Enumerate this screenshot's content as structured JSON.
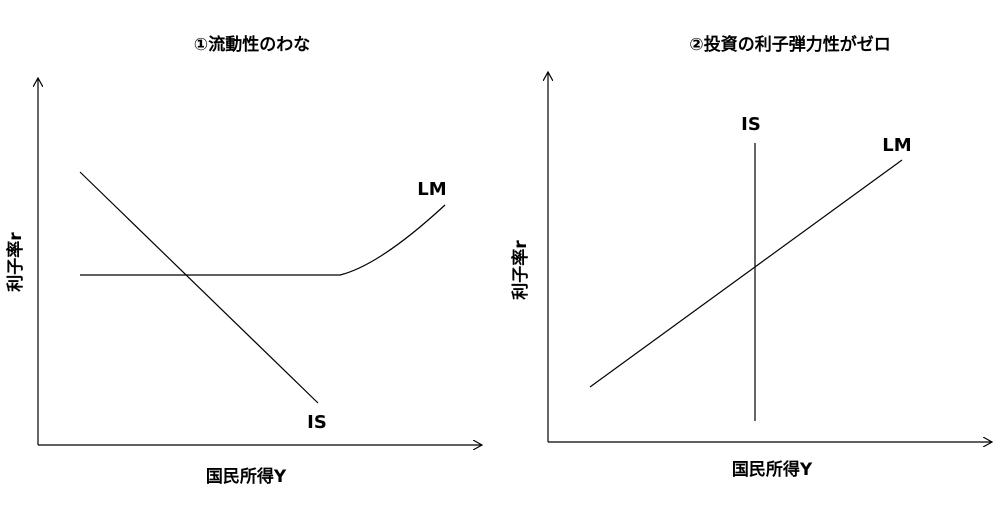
{
  "panels": [
    {
      "title": "①流動性のわな",
      "y_label": "利子率r",
      "x_label": "国民所得Y",
      "curves": [
        {
          "label": "IS"
        },
        {
          "label": "LM"
        }
      ]
    },
    {
      "title": "②投資の利子弾力性がゼロ",
      "y_label": "利子率r",
      "x_label": "国民所得Y",
      "curves": [
        {
          "label": "IS"
        },
        {
          "label": "LM"
        }
      ]
    }
  ]
}
